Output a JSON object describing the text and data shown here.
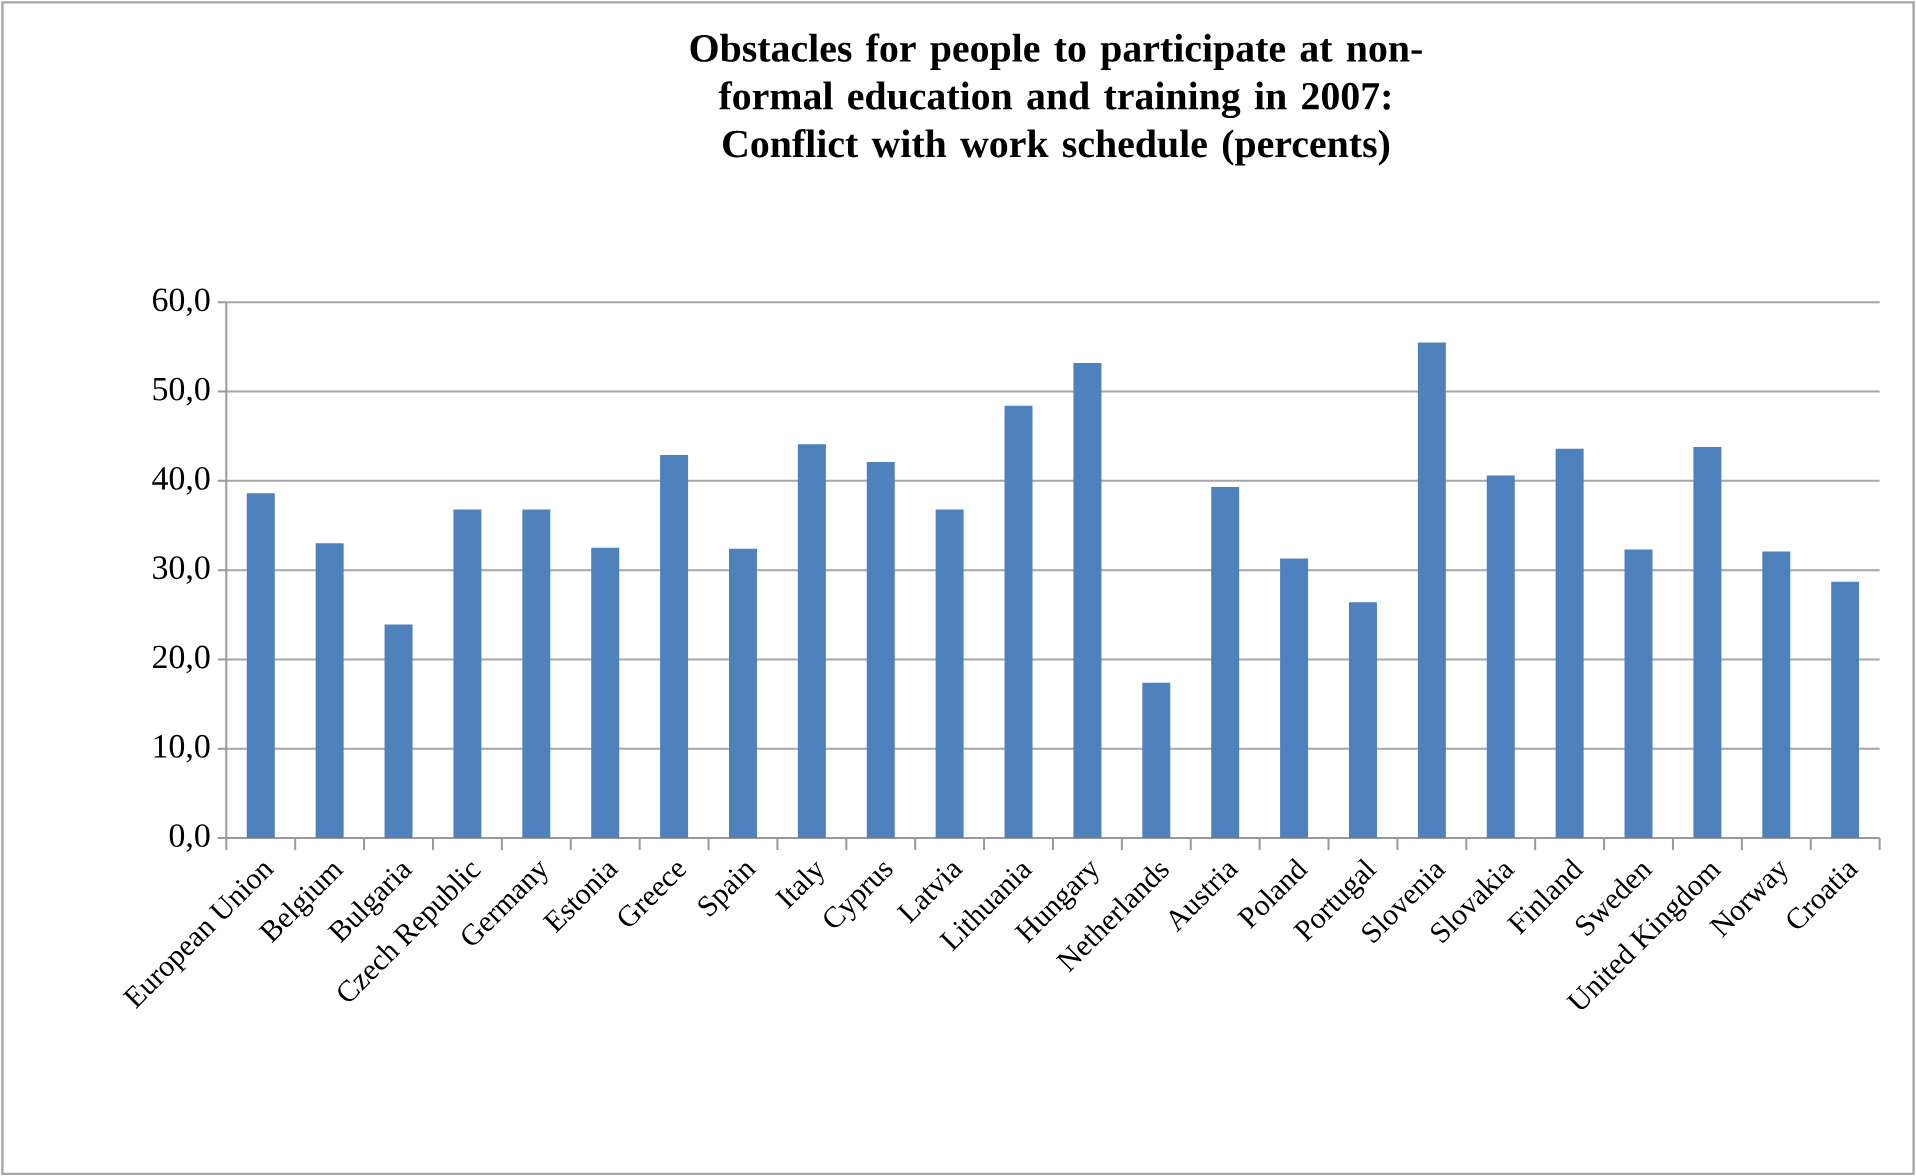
{
  "chart_data": {
    "type": "bar",
    "title": "Obstacles for people to participate at non-formal education and training in 2007:",
    "subtitle": "Conflict with work schedule (percents)",
    "categories": [
      "European Union",
      "Belgium",
      "Bulgaria",
      "Czech Republic",
      "Germany",
      "Estonia",
      "Greece",
      "Spain",
      "Italy",
      "Cyprus",
      "Latvia",
      "Lithuania",
      "Hungary",
      "Netherlands",
      "Austria",
      "Poland",
      "Portugal",
      "Slovenia",
      "Slovakia",
      "Finland",
      "Sweden",
      "United Kingdom",
      "Norway",
      "Croatia"
    ],
    "values": [
      38.6,
      33.0,
      23.9,
      36.8,
      36.8,
      32.5,
      42.9,
      32.4,
      44.1,
      42.1,
      36.8,
      48.4,
      53.2,
      17.4,
      39.3,
      31.3,
      26.4,
      55.5,
      40.6,
      43.6,
      32.3,
      43.8,
      32.1,
      28.7
    ],
    "color": "#4f81bd",
    "ylim": [
      0,
      60
    ],
    "yticks": [
      {
        "value": 0,
        "label": "0,0"
      },
      {
        "value": 10,
        "label": "10,0"
      },
      {
        "value": 20,
        "label": "20,0"
      },
      {
        "value": 30,
        "label": "30,0"
      },
      {
        "value": 40,
        "label": "40,0"
      },
      {
        "value": 50,
        "label": "50,0"
      },
      {
        "value": 60,
        "label": "60,0"
      }
    ],
    "grid": "y"
  }
}
